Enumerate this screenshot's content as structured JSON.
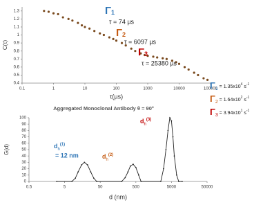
{
  "chart_data": [
    {
      "type": "scatter",
      "x_label": "τ(µs)",
      "y_label": "C(τ)",
      "log_x": true,
      "color": "#7a4a1e",
      "x": [
        0.5,
        0.7,
        1,
        1.4,
        2,
        3,
        4,
        6,
        8,
        10,
        14,
        20,
        30,
        40,
        60,
        80,
        100,
        150,
        200,
        300,
        400,
        600,
        800,
        1000,
        1500,
        2000,
        3000,
        4000,
        6000,
        8000,
        10000,
        15000,
        20000,
        30000,
        40000,
        60000,
        80000
      ],
      "values": [
        1.3,
        1.29,
        1.27,
        1.26,
        1.22,
        1.2,
        1.18,
        1.15,
        1.12,
        1.1,
        1.08,
        1.05,
        1.02,
        1.0,
        0.97,
        0.95,
        0.93,
        0.9,
        0.87,
        0.83,
        0.8,
        0.77,
        0.75,
        0.74,
        0.73,
        0.72,
        0.71,
        0.7,
        0.68,
        0.66,
        0.64,
        0.6,
        0.57,
        0.53,
        0.5,
        0.46,
        0.44
      ],
      "xlim": [
        0.1,
        100000
      ],
      "xticks": [
        0.1,
        1,
        10,
        100,
        1000,
        10000,
        100000
      ],
      "ylim": [
        0.4,
        1.35
      ],
      "yticks": [
        0.4,
        0.5,
        0.6,
        0.7,
        0.8,
        0.9,
        1,
        1.1,
        1.2,
        1.3
      ],
      "annotations": [
        {
          "symbol": "Γ",
          "subscript": "1",
          "text": "τ = 74 µs",
          "color": "#2e75b6"
        },
        {
          "symbol": "Γ",
          "subscript": "2",
          "text": "τ = 6097 µs",
          "color": "#c55a11"
        },
        {
          "symbol": "Γ",
          "subscript": "3",
          "text": "τ = 25380 µs",
          "color": "#c00000"
        }
      ],
      "rates": [
        {
          "symbol": "Γ",
          "subscript": "1",
          "text": " = 1.35x10",
          "exponent": "4",
          "unit": " s",
          "unit_exponent": "-1",
          "color": "#2e75b6"
        },
        {
          "symbol": "Γ",
          "subscript": "2",
          "text": " = 1.64x10",
          "exponent": "2",
          "unit": " s",
          "unit_exponent": "-1",
          "color": "#c55a11"
        },
        {
          "symbol": "Γ",
          "subscript": "3",
          "text": " = 3.94x10",
          "exponent": "1",
          "unit": " s",
          "unit_exponent": "-1",
          "color": "#c00000"
        }
      ]
    },
    {
      "type": "line",
      "title": "Aggregated Monoclonal Antibody θ = 90°",
      "x_label": "d (nm)",
      "y_label": "G(d)",
      "log_x": true,
      "color": "#222222",
      "x": [
        3,
        8,
        10,
        12,
        15,
        18,
        22,
        27,
        33,
        40,
        200,
        250,
        300,
        350,
        420,
        500,
        600,
        700,
        2500,
        3000,
        3500,
        4000,
        4500,
        5000,
        5500,
        6000,
        7000,
        8000,
        10000
      ],
      "values": [
        0,
        0,
        5,
        15,
        26,
        30,
        26,
        15,
        5,
        0,
        0,
        6,
        15,
        24,
        27,
        22,
        10,
        0,
        0,
        20,
        50,
        80,
        100,
        95,
        70,
        40,
        10,
        0,
        0
      ],
      "xlim": [
        0.5,
        50000
      ],
      "xticks": [
        0.5,
        5,
        50,
        500,
        5000,
        50000
      ],
      "ylim": [
        0,
        100
      ],
      "yticks": [
        0,
        10,
        20,
        30,
        40,
        50,
        60,
        70,
        80,
        90,
        100
      ],
      "annotations": [
        {
          "symbol": "d",
          "subscript": "h",
          "superscript": "(1)",
          "text": "= 12 nm",
          "color": "#2e75b6"
        },
        {
          "symbol": "d",
          "subscript": "h",
          "superscript": "(2)",
          "color": "#c55a11"
        },
        {
          "symbol": "d",
          "subscript": "h",
          "superscript": "(3)",
          "color": "#c00000"
        }
      ]
    }
  ]
}
